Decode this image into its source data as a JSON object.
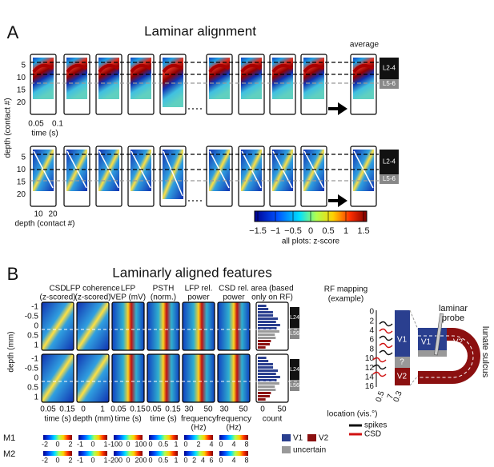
{
  "panel_a": {
    "label": "A",
    "title": "Laminar alignment",
    "average": "average",
    "depth_ticks": [
      "5",
      "10",
      "15",
      "20"
    ],
    "ylabel": "depth (contact #)",
    "time_ticks": [
      "0.05",
      "0.1"
    ],
    "time_label": "time (s)",
    "depth_ticks_x": [
      "10",
      "20"
    ],
    "depth_label": "depth (contact #)",
    "layers": [
      "L2-4",
      "L5-6"
    ],
    "colorbar": {
      "ticks": [
        "−1.5",
        "−1",
        "−0.5",
        "0",
        "0.5",
        "1",
        "1.5"
      ],
      "label": "all plots: z-score"
    }
  },
  "panel_b": {
    "label": "B",
    "title": "Laminarly aligned features",
    "columns": [
      {
        "title": [
          "CSD",
          "(z-scored)"
        ],
        "xticks": [
          "0.05",
          "0.15"
        ],
        "xlabel": [
          "time (s)"
        ]
      },
      {
        "title": [
          "LFP coherence",
          "(z-scored)"
        ],
        "xticks": [
          "0",
          "1"
        ],
        "xlabel": [
          "depth (mm)"
        ]
      },
      {
        "title": [
          "LFP",
          "VEP (mV)"
        ],
        "xticks": [
          "0.05",
          "0.15"
        ],
        "xlabel": [
          "time (s)"
        ]
      },
      {
        "title": [
          "PSTH",
          "(norm.)"
        ],
        "xticks": [
          "0.05",
          "0.15"
        ],
        "xlabel": [
          "time (s)"
        ]
      },
      {
        "title": [
          "LFP rel.",
          "power"
        ],
        "xticks": [
          "30",
          "50"
        ],
        "xlabel": [
          "frequency",
          "(Hz)"
        ]
      },
      {
        "title": [
          "CSD rel.",
          "power"
        ],
        "xticks": [
          "30",
          "50"
        ],
        "xlabel": [
          "frequency",
          "(Hz)"
        ]
      },
      {
        "title": [
          "area (based",
          "only on RF)"
        ],
        "xticks": [
          "0",
          "50"
        ],
        "xlabel": [
          "count"
        ]
      }
    ],
    "yticks": [
      "-1",
      "-0.5",
      "0",
      "0.5",
      "1"
    ],
    "ylabel": "depth (mm)",
    "layers": [
      "L24",
      "L56"
    ],
    "monkeys": [
      {
        "name": "M1",
        "scales": [
          [
            "-2",
            "0",
            "2"
          ],
          [
            "-1",
            "0",
            "1"
          ],
          [
            "-100",
            "0",
            "100"
          ],
          [
            "0",
            "0.5",
            "1"
          ],
          [
            "0",
            "2",
            "4"
          ],
          [
            "0",
            "4",
            "8"
          ]
        ]
      },
      {
        "name": "M2",
        "scales": [
          [
            "-2",
            "0",
            "2"
          ],
          [
            "-1",
            "0",
            "1"
          ],
          [
            "-200",
            "0",
            "200"
          ],
          [
            "0",
            "0.5",
            "1"
          ],
          [
            "0",
            "2",
            "4",
            "6"
          ],
          [
            "0",
            "4",
            "8"
          ]
        ]
      }
    ],
    "legend": [
      "V1",
      "V2",
      "uncertain"
    ]
  },
  "rf_mapping": {
    "title": [
      "RF mapping",
      "(example)"
    ],
    "yticks": [
      "0",
      "2",
      "4",
      "6",
      "8",
      "10",
      "12",
      "14",
      "16"
    ],
    "areas": [
      "V1",
      "?",
      "V2"
    ],
    "xticks": [
      "0.5",
      "7",
      "0.3"
    ],
    "xlabel": "location (vis.°)",
    "legend": [
      "spikes",
      "CSD"
    ]
  },
  "diagram": {
    "probe": [
      "laminar",
      "probe"
    ],
    "sulcus": "lunate sulcus",
    "areas": [
      "V1",
      "V2"
    ]
  }
}
